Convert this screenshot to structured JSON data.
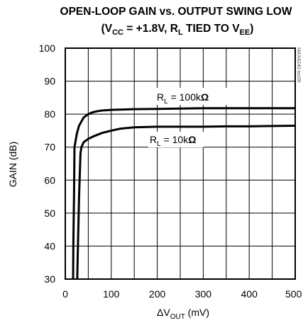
{
  "chart_data": {
    "type": "line",
    "title_line1": "OPEN-LOOP GAIN vs. OUTPUT SWING LOW",
    "title_line2": {
      "p1": "(V",
      "s1": "CC",
      "p2": " = +1.8V, R",
      "s2": "L",
      "p3": " TIED TO V",
      "s3": "EE",
      "p4": ")"
    },
    "xlabel": {
      "delta": "ΔV",
      "sub": "OUT",
      "unit": " (mV)"
    },
    "ylabel": "GAIN (dB)",
    "xlim": [
      0,
      500
    ],
    "ylim": [
      30,
      100
    ],
    "xticks": [
      "0",
      "100",
      "200",
      "300",
      "400",
      "500"
    ],
    "yticks": [
      "30",
      "40",
      "50",
      "60",
      "70",
      "80",
      "90",
      "100"
    ],
    "grid": true,
    "watermark": "MAX4240 toc06",
    "series": [
      {
        "name": "RL = 100kΩ",
        "label": {
          "r": "R",
          "sub": "L",
          "val": " = 100k",
          "omega": "Ω"
        },
        "x": [
          17,
          17.5,
          19,
          20,
          25,
          30,
          40,
          50,
          60,
          70,
          80,
          100,
          150,
          200,
          250,
          300,
          350,
          400,
          450,
          500
        ],
        "y": [
          30,
          40,
          55,
          70,
          74,
          76.5,
          79,
          80,
          80.6,
          80.9,
          81.1,
          81.3,
          81.5,
          81.6,
          81.7,
          81.8,
          81.8,
          81.8,
          81.8,
          81.8
        ]
      },
      {
        "name": "RL = 10kΩ",
        "label": {
          "r": "R",
          "sub": "L",
          "val": " = 10k",
          "omega": "Ω"
        },
        "x": [
          26,
          27.5,
          30,
          33,
          35,
          40,
          50,
          60,
          80,
          100,
          120,
          150,
          200,
          250,
          300,
          350,
          400,
          450,
          500
        ],
        "y": [
          30,
          40,
          55,
          68,
          70,
          71.5,
          72.5,
          73.2,
          74.3,
          75.0,
          75.6,
          76.0,
          76.2,
          76.2,
          76.2,
          76.3,
          76.3,
          76.4,
          76.5
        ]
      }
    ]
  }
}
